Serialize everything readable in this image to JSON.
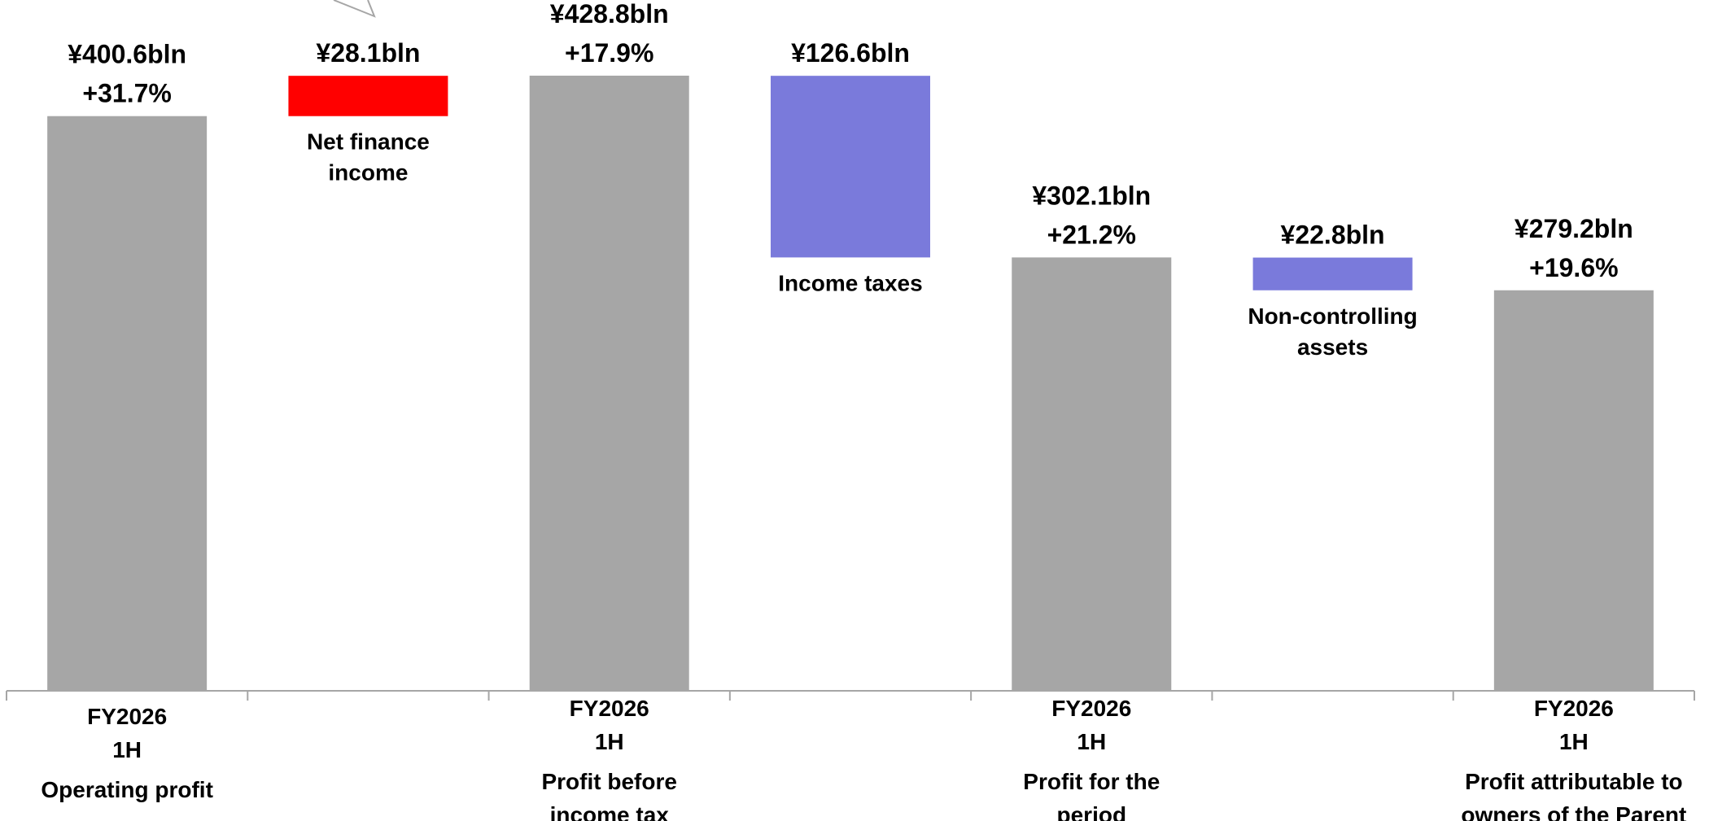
{
  "chart_data": {
    "type": "bar",
    "subtype": "waterfall",
    "categories": [
      [
        "FY2026",
        "1H",
        "Operating profit"
      ],
      [
        "",
        "",
        ""
      ],
      [
        "FY2026",
        "1H",
        "Profit before",
        "income tax"
      ],
      [
        "",
        "",
        ""
      ],
      [
        "FY2026",
        "1H",
        "Profit for the",
        "period"
      ],
      [
        "",
        "",
        ""
      ],
      [
        "FY2026",
        "1H",
        "Profit attributable to",
        "owners of the Parent"
      ]
    ],
    "bars": [
      {
        "kind": "total",
        "base": 0,
        "value": 400.6,
        "color": "#a6a6a6",
        "value_label": "¥400.6bln",
        "change_label": "+31.7%",
        "inner_label": []
      },
      {
        "kind": "increase",
        "base": 400.6,
        "value": 28.1,
        "color": "#ff0000",
        "value_label": "¥28.1bln",
        "change_label": "",
        "inner_label": [
          "Net finance",
          "income"
        ]
      },
      {
        "kind": "total",
        "base": 0,
        "value": 428.8,
        "color": "#a6a6a6",
        "value_label": "¥428.8bln",
        "change_label": "+17.9%",
        "inner_label": []
      },
      {
        "kind": "decrease",
        "base": 302.1,
        "value": 126.6,
        "color": "#7a7adb",
        "value_label": "¥126.6bln",
        "change_label": "",
        "inner_label": [
          "Income taxes"
        ]
      },
      {
        "kind": "total",
        "base": 0,
        "value": 302.1,
        "color": "#a6a6a6",
        "value_label": "¥302.1bln",
        "change_label": "+21.2%",
        "inner_label": []
      },
      {
        "kind": "decrease",
        "base": 279.2,
        "value": 22.8,
        "color": "#7a7adb",
        "value_label": "¥22.8bln",
        "change_label": "",
        "inner_label": [
          "Non-controlling",
          "assets"
        ]
      },
      {
        "kind": "total",
        "base": 0,
        "value": 279.2,
        "color": "#a6a6a6",
        "value_label": "¥279.2bln",
        "change_label": "+19.6%",
        "inner_label": []
      }
    ],
    "ylim": [
      0,
      428.8
    ],
    "grid": false,
    "colors": {
      "total": "#a6a6a6",
      "increase": "#ff0000",
      "decrease": "#7a7adb",
      "axis": "#a6a6a6"
    }
  }
}
